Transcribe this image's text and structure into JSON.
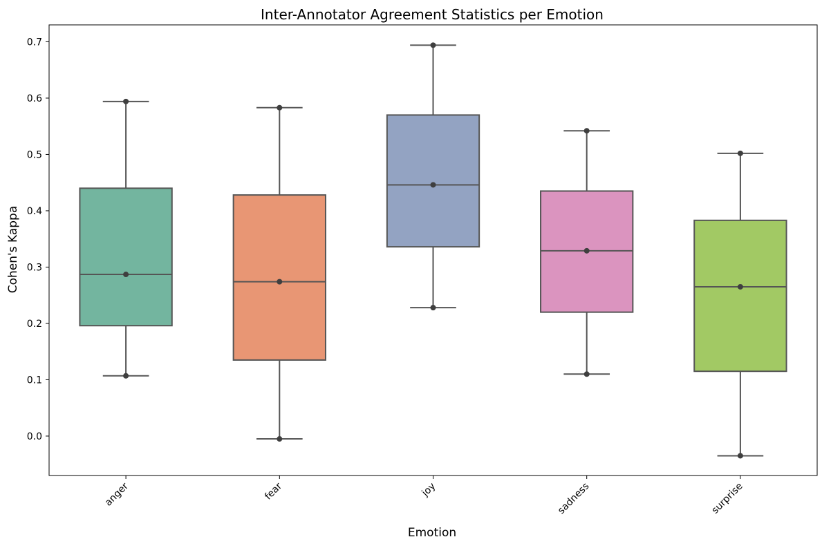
{
  "chart_data": {
    "type": "box",
    "title": "Inter-Annotator Agreement Statistics per Emotion",
    "xlabel": "Emotion",
    "ylabel": "Cohen's Kappa",
    "ylim": [
      -0.07,
      0.73
    ],
    "yticks": [
      "0.0",
      "0.1",
      "0.2",
      "0.3",
      "0.4",
      "0.5",
      "0.6",
      "0.7"
    ],
    "categories": [
      "anger",
      "fear",
      "joy",
      "sadness",
      "surprise"
    ],
    "boxes": [
      {
        "category": "anger",
        "min": 0.107,
        "q1": 0.196,
        "median": 0.287,
        "q3": 0.44,
        "max": 0.594,
        "color": "#73b59f",
        "points": [
          0.107,
          0.287,
          0.594
        ]
      },
      {
        "category": "fear",
        "min": -0.005,
        "q1": 0.135,
        "median": 0.274,
        "q3": 0.428,
        "max": 0.583,
        "color": "#e89674",
        "points": [
          -0.005,
          0.274,
          0.583
        ]
      },
      {
        "category": "joy",
        "min": 0.228,
        "q1": 0.336,
        "median": 0.446,
        "q3": 0.57,
        "max": 0.694,
        "color": "#93a3c2",
        "points": [
          0.228,
          0.446,
          0.694
        ]
      },
      {
        "category": "sadness",
        "min": 0.11,
        "q1": 0.22,
        "median": 0.329,
        "q3": 0.435,
        "max": 0.542,
        "color": "#db94bf",
        "points": [
          0.11,
          0.329,
          0.542
        ]
      },
      {
        "category": "surprise",
        "min": -0.035,
        "q1": 0.115,
        "median": 0.265,
        "q3": 0.383,
        "max": 0.502,
        "color": "#a2c964",
        "points": [
          -0.035,
          0.265,
          0.502
        ]
      }
    ],
    "grid": false,
    "legend": "none"
  }
}
